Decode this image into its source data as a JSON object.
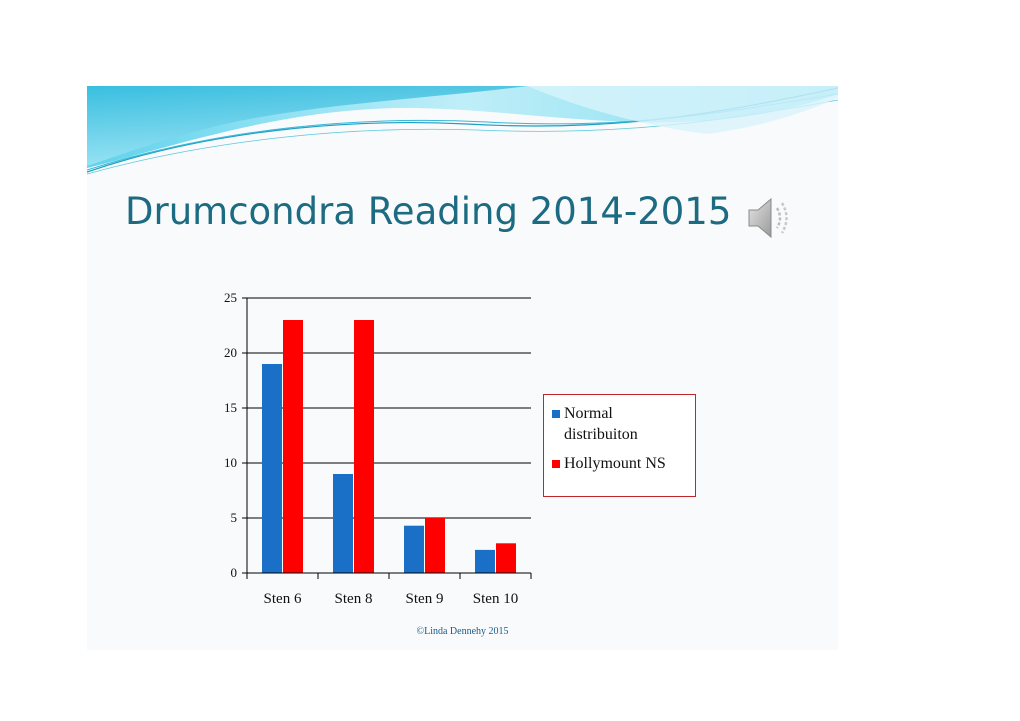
{
  "slide": {
    "title": "Drumcondra Reading 2014-2015",
    "copyright": "©Linda Dennehy 2015"
  },
  "icons": [
    "speaker-icon"
  ],
  "colors": {
    "title": "#1c6b82",
    "wave": "#3cc4e0",
    "normal_series": "#1a6fc6",
    "hollymount_series": "#ff0000",
    "legend_border": "#c0262b",
    "copyright": "#1a5c8a"
  },
  "chart_data": {
    "type": "bar",
    "categories": [
      "Sten 6",
      "Sten 8",
      "Sten 9",
      "Sten 10"
    ],
    "series": [
      {
        "name": "Normal distribuiton",
        "values": [
          19,
          9,
          4.3,
          2.1
        ],
        "color": "#1a6fc6"
      },
      {
        "name": "Hollymount NS",
        "values": [
          23,
          23,
          5,
          2.7
        ],
        "color": "#ff0000"
      }
    ],
    "ylim": [
      0,
      25
    ],
    "yticks": [
      "0",
      "5",
      "10",
      "15",
      "20",
      "25"
    ],
    "ytick_values": [
      0,
      5,
      10,
      15,
      20,
      25
    ],
    "grid": true,
    "legend_position": "right"
  }
}
